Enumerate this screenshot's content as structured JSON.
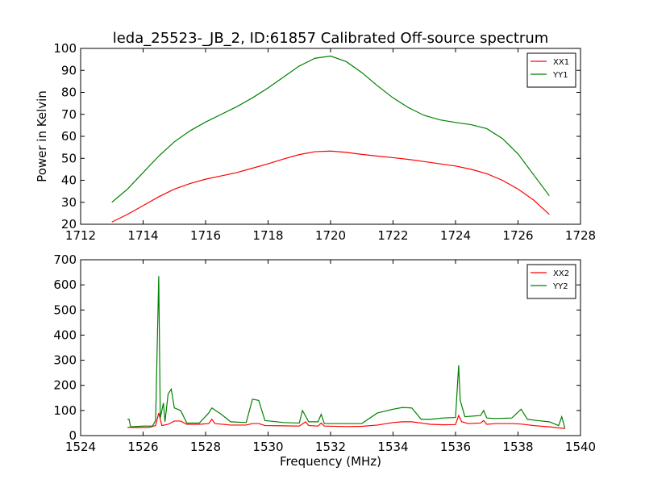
{
  "title": "leda_25523-_JB_2, ID:61857 Calibrated Off-source spectrum",
  "chart_data": [
    {
      "type": "line",
      "xlabel": "",
      "ylabel": "Power in Kelvin",
      "xlim": [
        1712,
        1728
      ],
      "ylim": [
        20,
        100
      ],
      "xticks": [
        "1712",
        "1714",
        "1716",
        "1718",
        "1720",
        "1722",
        "1724",
        "1726",
        "1728"
      ],
      "yticks": [
        "20",
        "30",
        "40",
        "50",
        "60",
        "70",
        "80",
        "90",
        "100"
      ],
      "legend_position": "top-right",
      "series": [
        {
          "name": "XX1",
          "color": "#ff0000",
          "points": [
            [
              1713.0,
              21.0
            ],
            [
              1713.5,
              24.5
            ],
            [
              1714.0,
              28.5
            ],
            [
              1714.5,
              32.5
            ],
            [
              1715.0,
              36.0
            ],
            [
              1715.5,
              38.5
            ],
            [
              1716.0,
              40.5
            ],
            [
              1716.5,
              42.0
            ],
            [
              1717.0,
              43.5
            ],
            [
              1717.5,
              45.5
            ],
            [
              1718.0,
              47.5
            ],
            [
              1718.5,
              49.7
            ],
            [
              1719.0,
              51.7
            ],
            [
              1719.5,
              53.0
            ],
            [
              1720.0,
              53.3
            ],
            [
              1720.5,
              52.7
            ],
            [
              1721.0,
              51.8
            ],
            [
              1721.5,
              51.0
            ],
            [
              1722.0,
              50.3
            ],
            [
              1722.5,
              49.5
            ],
            [
              1723.0,
              48.5
            ],
            [
              1723.5,
              47.5
            ],
            [
              1724.0,
              46.5
            ],
            [
              1724.5,
              45.0
            ],
            [
              1725.0,
              43.0
            ],
            [
              1725.5,
              40.0
            ],
            [
              1726.0,
              36.0
            ],
            [
              1726.5,
              31.0
            ],
            [
              1727.0,
              24.5
            ]
          ]
        },
        {
          "name": "YY1",
          "color": "#008000",
          "points": [
            [
              1713.0,
              30.0
            ],
            [
              1713.5,
              36.0
            ],
            [
              1714.0,
              43.5
            ],
            [
              1714.5,
              51.0
            ],
            [
              1715.0,
              57.5
            ],
            [
              1715.5,
              62.5
            ],
            [
              1716.0,
              66.5
            ],
            [
              1716.5,
              70.0
            ],
            [
              1717.0,
              73.5
            ],
            [
              1717.5,
              77.5
            ],
            [
              1718.0,
              82.0
            ],
            [
              1718.5,
              87.0
            ],
            [
              1719.0,
              92.0
            ],
            [
              1719.5,
              95.5
            ],
            [
              1720.0,
              96.5
            ],
            [
              1720.5,
              94.0
            ],
            [
              1721.0,
              89.0
            ],
            [
              1721.5,
              83.0
            ],
            [
              1722.0,
              77.5
            ],
            [
              1722.5,
              73.0
            ],
            [
              1723.0,
              69.5
            ],
            [
              1723.5,
              67.5
            ],
            [
              1724.0,
              66.3
            ],
            [
              1724.5,
              65.3
            ],
            [
              1725.0,
              63.5
            ],
            [
              1725.5,
              59.0
            ],
            [
              1726.0,
              52.0
            ],
            [
              1726.5,
              42.5
            ],
            [
              1727.0,
              33.0
            ]
          ]
        }
      ]
    },
    {
      "type": "line",
      "xlabel": "Frequency (MHz)",
      "ylabel": "",
      "xlim": [
        1524,
        1540
      ],
      "ylim": [
        0,
        700
      ],
      "xticks": [
        "1524",
        "1526",
        "1528",
        "1530",
        "1532",
        "1534",
        "1536",
        "1538",
        "1540"
      ],
      "yticks": [
        "0",
        "100",
        "200",
        "300",
        "400",
        "500",
        "600",
        "700"
      ],
      "legend_position": "top-right",
      "series": [
        {
          "name": "XX2",
          "color": "#ff0000",
          "points": [
            [
              1525.5,
              33
            ],
            [
              1525.8,
              32
            ],
            [
              1526.2,
              33
            ],
            [
              1526.4,
              40
            ],
            [
              1526.5,
              90
            ],
            [
              1526.6,
              40
            ],
            [
              1526.8,
              45
            ],
            [
              1527.0,
              58
            ],
            [
              1527.2,
              58
            ],
            [
              1527.4,
              45
            ],
            [
              1527.8,
              45
            ],
            [
              1528.1,
              48
            ],
            [
              1528.2,
              65
            ],
            [
              1528.3,
              48
            ],
            [
              1528.8,
              42
            ],
            [
              1529.3,
              42
            ],
            [
              1529.5,
              48
            ],
            [
              1529.7,
              48
            ],
            [
              1529.9,
              40
            ],
            [
              1530.5,
              39
            ],
            [
              1531.0,
              38
            ],
            [
              1531.2,
              55
            ],
            [
              1531.3,
              40
            ],
            [
              1531.6,
              38
            ],
            [
              1531.7,
              50
            ],
            [
              1531.8,
              38
            ],
            [
              1532.5,
              36
            ],
            [
              1533.0,
              37
            ],
            [
              1533.5,
              42
            ],
            [
              1534.0,
              52
            ],
            [
              1534.3,
              55
            ],
            [
              1534.6,
              55
            ],
            [
              1534.9,
              50
            ],
            [
              1535.2,
              45
            ],
            [
              1535.6,
              43
            ],
            [
              1536.0,
              44
            ],
            [
              1536.1,
              80
            ],
            [
              1536.2,
              55
            ],
            [
              1536.4,
              48
            ],
            [
              1536.8,
              50
            ],
            [
              1536.9,
              60
            ],
            [
              1537.0,
              45
            ],
            [
              1537.3,
              48
            ],
            [
              1537.8,
              48
            ],
            [
              1538.1,
              46
            ],
            [
              1538.5,
              40
            ],
            [
              1539.0,
              35
            ],
            [
              1539.5,
              28
            ]
          ]
        },
        {
          "name": "YY2",
          "color": "#008000",
          "points": [
            [
              1525.5,
              65
            ],
            [
              1525.55,
              65
            ],
            [
              1525.6,
              35
            ],
            [
              1526.0,
              38
            ],
            [
              1526.3,
              38
            ],
            [
              1526.4,
              60
            ],
            [
              1526.5,
              635
            ],
            [
              1526.55,
              70
            ],
            [
              1526.65,
              130
            ],
            [
              1526.7,
              55
            ],
            [
              1526.8,
              165
            ],
            [
              1526.9,
              185
            ],
            [
              1527.0,
              110
            ],
            [
              1527.2,
              100
            ],
            [
              1527.4,
              50
            ],
            [
              1527.8,
              50
            ],
            [
              1528.1,
              90
            ],
            [
              1528.2,
              110
            ],
            [
              1528.5,
              85
            ],
            [
              1528.8,
              55
            ],
            [
              1529.3,
              52
            ],
            [
              1529.5,
              145
            ],
            [
              1529.7,
              140
            ],
            [
              1529.9,
              60
            ],
            [
              1530.5,
              52
            ],
            [
              1531.0,
              50
            ],
            [
              1531.1,
              100
            ],
            [
              1531.3,
              55
            ],
            [
              1531.6,
              55
            ],
            [
              1531.7,
              85
            ],
            [
              1531.8,
              48
            ],
            [
              1532.5,
              48
            ],
            [
              1533.0,
              48
            ],
            [
              1533.5,
              90
            ],
            [
              1534.0,
              105
            ],
            [
              1534.3,
              112
            ],
            [
              1534.6,
              110
            ],
            [
              1534.9,
              65
            ],
            [
              1535.2,
              65
            ],
            [
              1535.6,
              70
            ],
            [
              1536.0,
              72
            ],
            [
              1536.1,
              280
            ],
            [
              1536.15,
              140
            ],
            [
              1536.3,
              75
            ],
            [
              1536.8,
              80
            ],
            [
              1536.9,
              100
            ],
            [
              1537.0,
              70
            ],
            [
              1537.3,
              68
            ],
            [
              1537.8,
              70
            ],
            [
              1538.1,
              105
            ],
            [
              1538.3,
              65
            ],
            [
              1538.6,
              60
            ],
            [
              1539.0,
              55
            ],
            [
              1539.3,
              40
            ],
            [
              1539.4,
              75
            ],
            [
              1539.5,
              30
            ]
          ]
        }
      ]
    }
  ]
}
